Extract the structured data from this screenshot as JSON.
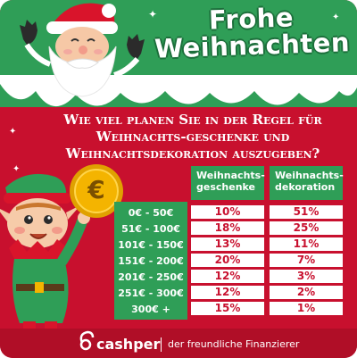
{
  "title": {
    "line1": "Frohe",
    "line2": "Weihnachten"
  },
  "question": "Wie viel planen Sie in der Regel für Weihnachts-geschenke und Weihnachtsdekoration auszugeben?",
  "table": {
    "headers": [
      "Weihnachts-geschenke",
      "Weihnachts-dekoration"
    ],
    "rows": [
      {
        "range": "0€ - 50€",
        "geschenke": "10%",
        "dekoration": "51%"
      },
      {
        "range": "51€ - 100€",
        "geschenke": "18%",
        "dekoration": "25%"
      },
      {
        "range": "101€ - 150€",
        "geschenke": "13%",
        "dekoration": "11%"
      },
      {
        "range": "151€ - 200€",
        "geschenke": "20%",
        "dekoration": "7%"
      },
      {
        "range": "201€ - 250€",
        "geschenke": "12%",
        "dekoration": "3%"
      },
      {
        "range": "251€ - 300€",
        "geschenke": "12%",
        "dekoration": "2%"
      },
      {
        "range": "300€ +",
        "geschenke": "15%",
        "dekoration": "1%"
      }
    ]
  },
  "footer": {
    "logo": "cashper",
    "tagline": "der freundliche Finanzierer"
  },
  "coin_symbol": "€",
  "colors": {
    "red": "#c8102e",
    "green": "#2f9e57",
    "gold": "#f4b400",
    "white": "#ffffff"
  }
}
